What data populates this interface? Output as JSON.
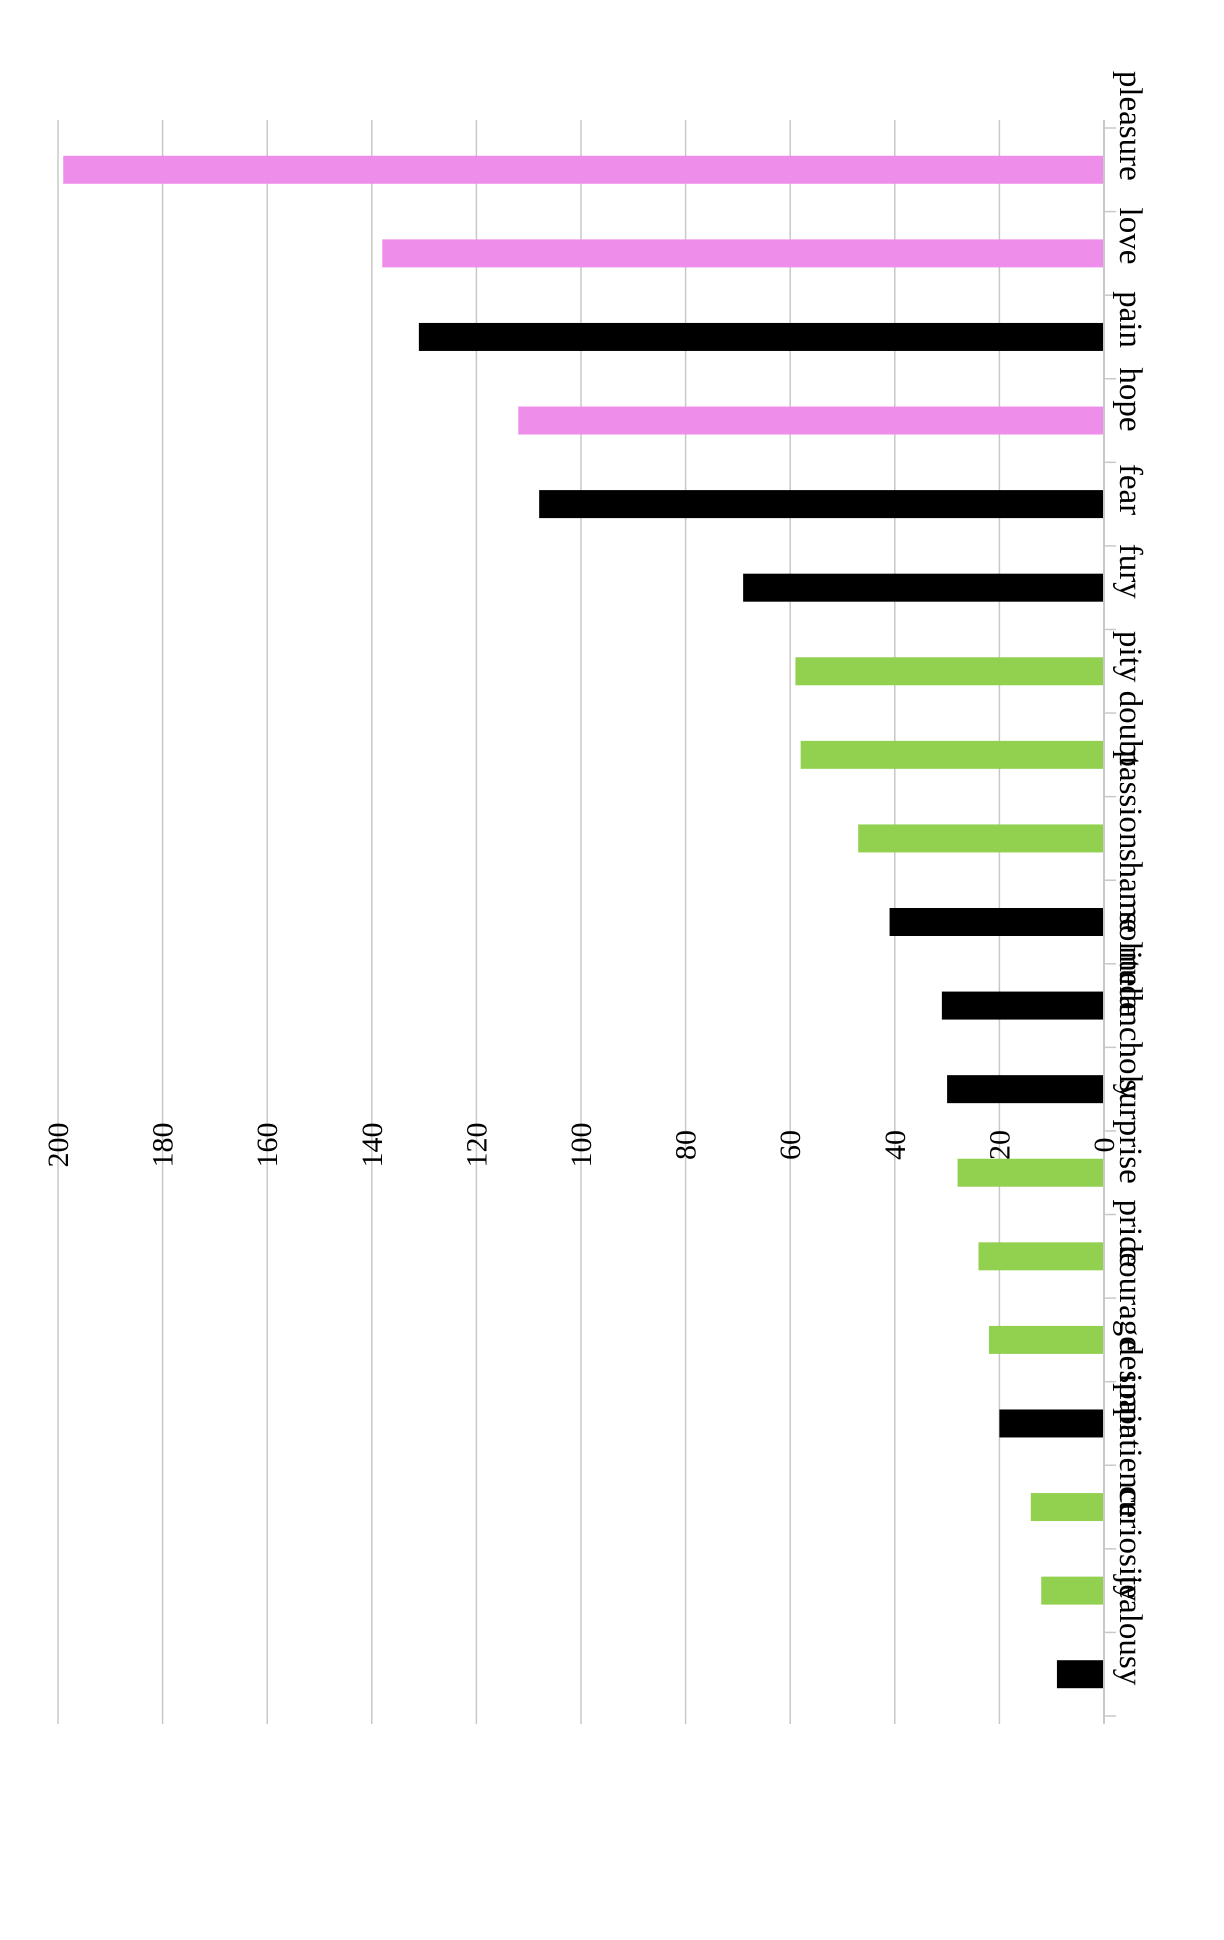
{
  "chart_data": {
    "type": "bar",
    "orientation": "vertical, rotated 90 degrees clockwise",
    "title": "",
    "xlabel": "",
    "ylabel": "",
    "ylim": [
      0,
      200
    ],
    "ytick_step": 20,
    "yticks": [
      "0",
      "20",
      "40",
      "60",
      "80",
      "100",
      "120",
      "140",
      "160",
      "180",
      "200"
    ],
    "grid": true,
    "legend": "none",
    "colors": {
      "pink": "#ee8eea",
      "black": "#000000",
      "green": "#92d050",
      "grid": "#c8c8c8"
    },
    "categories": [
      "pleasure",
      "love",
      "pain",
      "hope",
      "fear",
      "fury",
      "pity",
      "doubt",
      "passion",
      "shame",
      "solitude",
      "melancholy",
      "surprise",
      "pride",
      "courage",
      "despair",
      "impatience",
      "curiosity",
      "jealousy"
    ],
    "values": [
      199,
      138,
      131,
      112,
      108,
      69,
      59,
      58,
      47,
      41,
      31,
      30,
      28,
      24,
      22,
      20,
      14,
      12,
      9
    ],
    "bar_colors": [
      "pink",
      "pink",
      "black",
      "pink",
      "black",
      "black",
      "green",
      "green",
      "green",
      "black",
      "black",
      "black",
      "green",
      "green",
      "green",
      "black",
      "green",
      "green",
      "black"
    ]
  }
}
